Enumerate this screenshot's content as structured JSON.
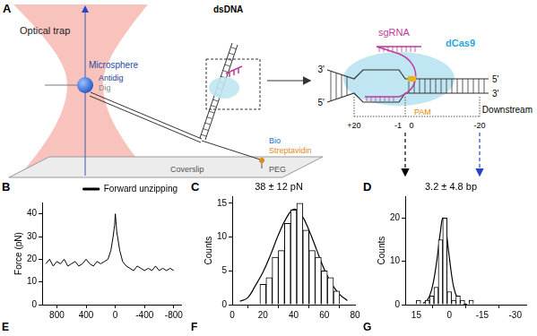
{
  "diagram": {
    "panel": "A",
    "optical_trap": "Optical trap",
    "microsphere": "Microsphere",
    "antidig": "Antidig",
    "dig": "Dig",
    "dsdna": "dsDNA",
    "bio": "Bio",
    "streptavidin": "Streptavidin",
    "peg": "PEG",
    "coverslip": "Coverslip",
    "sgrna": "sgRNA",
    "dcas9": "dCas9",
    "pam": "PAM",
    "downstream": "Downstream",
    "ends_left": [
      "3'",
      "5'"
    ],
    "ends_right": [
      "5'",
      "3'"
    ],
    "positions": [
      "+20",
      "-1",
      "0",
      "-20"
    ]
  },
  "chart_data": [
    {
      "panel": "B",
      "type": "line",
      "ylabel": "Force (pN)",
      "x": [
        950,
        900,
        850,
        800,
        750,
        700,
        650,
        600,
        550,
        500,
        450,
        400,
        350,
        300,
        250,
        200,
        150,
        100,
        60,
        30,
        10,
        0,
        -20,
        -60,
        -100,
        -150,
        -200,
        -250,
        -300,
        -350,
        -400,
        -450,
        -500,
        -550,
        -600,
        -650,
        -700,
        -750,
        -800
      ],
      "series": [
        {
          "name": "Forward unzipping",
          "color": "#000000",
          "values": [
            18,
            20,
            17,
            19,
            18,
            20,
            17,
            18,
            19,
            17,
            18,
            20,
            18,
            17,
            19,
            18,
            19,
            20,
            24,
            30,
            35,
            40,
            32,
            24,
            19,
            17,
            16,
            15,
            17,
            16,
            15,
            16,
            15,
            17,
            15,
            16,
            15,
            16,
            15
          ]
        }
      ],
      "xlim": [
        1000,
        -900
      ],
      "xticks": [
        800,
        400,
        0,
        -400,
        -800
      ],
      "ylim": [
        0,
        45
      ],
      "yticks": [
        0,
        10,
        20,
        30,
        40
      ],
      "legend": "top-right",
      "grid": false
    },
    {
      "panel": "C",
      "type": "histogram",
      "title": "38 ± 12 pN",
      "ylabel": "Counts",
      "bins": [
        18,
        22,
        26,
        30,
        34,
        38,
        42,
        46,
        50,
        54,
        58,
        62,
        66,
        70
      ],
      "counts": [
        3,
        4,
        7,
        8,
        12,
        14,
        15,
        11,
        8,
        7,
        5,
        4,
        2
      ],
      "color": "#ffffff",
      "fit": {
        "x": [
          5,
          10,
          15,
          20,
          25,
          30,
          35,
          40,
          45,
          50,
          55,
          60,
          65,
          70,
          75
        ],
        "values": [
          0.5,
          1.0,
          2.8,
          4.8,
          7.4,
          10.3,
          12.7,
          14.1,
          13.3,
          11.0,
          8.1,
          5.2,
          3.0,
          1.5,
          0.6
        ]
      },
      "xlim": [
        0,
        80
      ],
      "xticks": [
        0,
        20,
        40,
        60,
        80
      ],
      "ylim": [
        0,
        16
      ],
      "yticks": [
        0,
        5,
        10,
        15
      ],
      "grid": false
    },
    {
      "panel": "D",
      "type": "histogram",
      "title": "3.2 ± 4.8 bp",
      "ylabel": "Counts",
      "bins": [
        -11,
        -9,
        -7,
        -5,
        -3,
        -1,
        1,
        3,
        5,
        7,
        9,
        11,
        13,
        15
      ],
      "counts": [
        1,
        0,
        1,
        2,
        1,
        3,
        20,
        15,
        4,
        2,
        1,
        0,
        1
      ],
      "color": "#ffffff",
      "fit": {
        "x": [
          12,
          10,
          8,
          6,
          4,
          3,
          2,
          0,
          -2,
          -4,
          -6,
          -8
        ],
        "values": [
          0.3,
          1,
          3.5,
          9,
          17,
          20,
          19,
          11,
          4,
          1.2,
          0.3,
          0.1
        ]
      },
      "xlim": [
        20,
        -35
      ],
      "xticks": [
        15,
        0,
        -15,
        -30
      ],
      "ylim": [
        0,
        25
      ],
      "yticks": [
        0,
        10,
        20
      ],
      "grid": false
    }
  ],
  "lower_panels": [
    "E",
    "F",
    "G"
  ]
}
